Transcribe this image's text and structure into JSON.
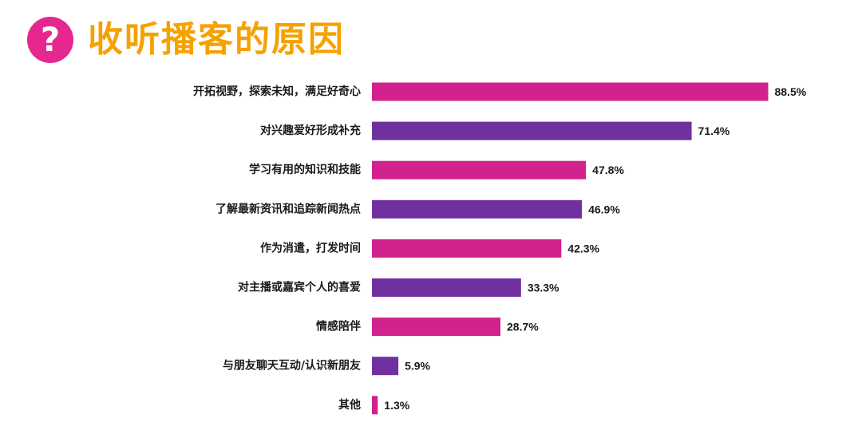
{
  "header": {
    "icon": "question-mark-icon",
    "icon_glyph": "?",
    "title": "收听播客的原因"
  },
  "colors": {
    "title": "#f5a100",
    "icon_bg": "#e5278f",
    "bar_magenta": "#d1228e",
    "bar_purple": "#7030a0"
  },
  "chart_data": {
    "type": "bar",
    "orientation": "horizontal",
    "title": "收听播客的原因",
    "categories": [
      "开拓视野，探索未知，满足好奇心",
      "对兴趣爱好形成补充",
      "学习有用的知识和技能",
      "了解最新资讯和追踪新闻热点",
      "作为消遣，打发时间",
      "对主播或嘉宾个人的喜爱",
      "情感陪伴",
      "与朋友聊天互动/认识新朋友",
      "其他"
    ],
    "values": [
      88.5,
      71.4,
      47.8,
      46.9,
      42.3,
      33.3,
      28.7,
      5.9,
      1.3
    ],
    "value_labels": [
      "88.5%",
      "71.4%",
      "47.8%",
      "46.9%",
      "42.3%",
      "33.3%",
      "28.7%",
      "5.9%",
      "1.3%"
    ],
    "bar_colors": [
      "#d1228e",
      "#7030a0",
      "#d1228e",
      "#7030a0",
      "#d1228e",
      "#7030a0",
      "#d1228e",
      "#7030a0",
      "#d1228e"
    ],
    "unit": "%",
    "xlim": [
      0,
      100
    ],
    "grid": false,
    "legend": "none"
  }
}
